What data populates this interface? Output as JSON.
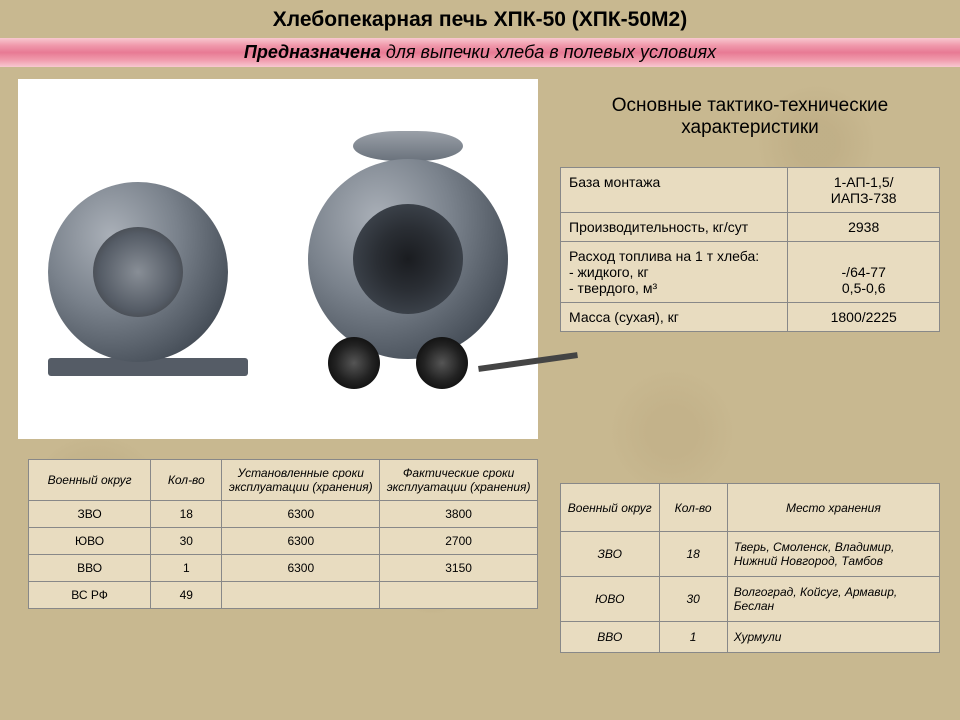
{
  "header": {
    "title": "Хлебопекарная печь ХПК-50 (ХПК-50М2)",
    "subtitle_bold": "Предназначена",
    "subtitle_rest": " для выпечки хлеба в полевых условиях"
  },
  "specs": {
    "title": "Основные тактико-технические характеристики",
    "rows": [
      {
        "label": "База монтажа",
        "value": "1-АП-1,5/\nИАПЗ-738"
      },
      {
        "label": "Производительность, кг/сут",
        "value": "2938"
      },
      {
        "label": "Расход топлива на 1 т хлеба:\n- жидкого, кг\n- твердого, м³",
        "value": "\n-/64-77\n0,5-0,6"
      },
      {
        "label": "Масса (сухая), кг",
        "value": "1800/2225"
      }
    ],
    "col_widths": [
      "60%",
      "40%"
    ],
    "border_color": "#888888",
    "cell_bg": "#e8dcc0",
    "font_size": 14
  },
  "table1": {
    "columns": [
      "Военный округ",
      "Кол-во",
      "Установленные сроки эксплуатации (хранения)",
      "Фактические сроки эксплуатации (хранения)"
    ],
    "rows": [
      [
        "ЗВО",
        "18",
        "6300",
        "3800"
      ],
      [
        "ЮВО",
        "30",
        "6300",
        "2700"
      ],
      [
        "ВВО",
        "1",
        "6300",
        "3150"
      ],
      [
        "ВС РФ",
        "49",
        "",
        ""
      ]
    ],
    "col_widths": [
      "24%",
      "14%",
      "31%",
      "31%"
    ],
    "border_color": "#888888",
    "cell_bg": "#e8dcc0",
    "font_size": 12
  },
  "table2": {
    "columns": [
      "Военный округ",
      "Кол-во",
      "Место хранения"
    ],
    "rows": [
      [
        "ЗВО",
        "18",
        "Тверь, Смоленск, Владимир, Нижний Новгород, Тамбов"
      ],
      [
        "ЮВО",
        "30",
        "Волгоград, Койсуг, Армавир, Беслан"
      ],
      [
        "ВВО",
        "1",
        "Хурмули"
      ]
    ],
    "col_widths": [
      "26%",
      "18%",
      "56%"
    ],
    "border_color": "#888888",
    "cell_bg": "#e8dcc0",
    "font_size": 12
  },
  "colors": {
    "background": "#c8b890",
    "header_gradient": [
      "#f8c8d0",
      "#e87a94"
    ],
    "text": "#000000"
  }
}
